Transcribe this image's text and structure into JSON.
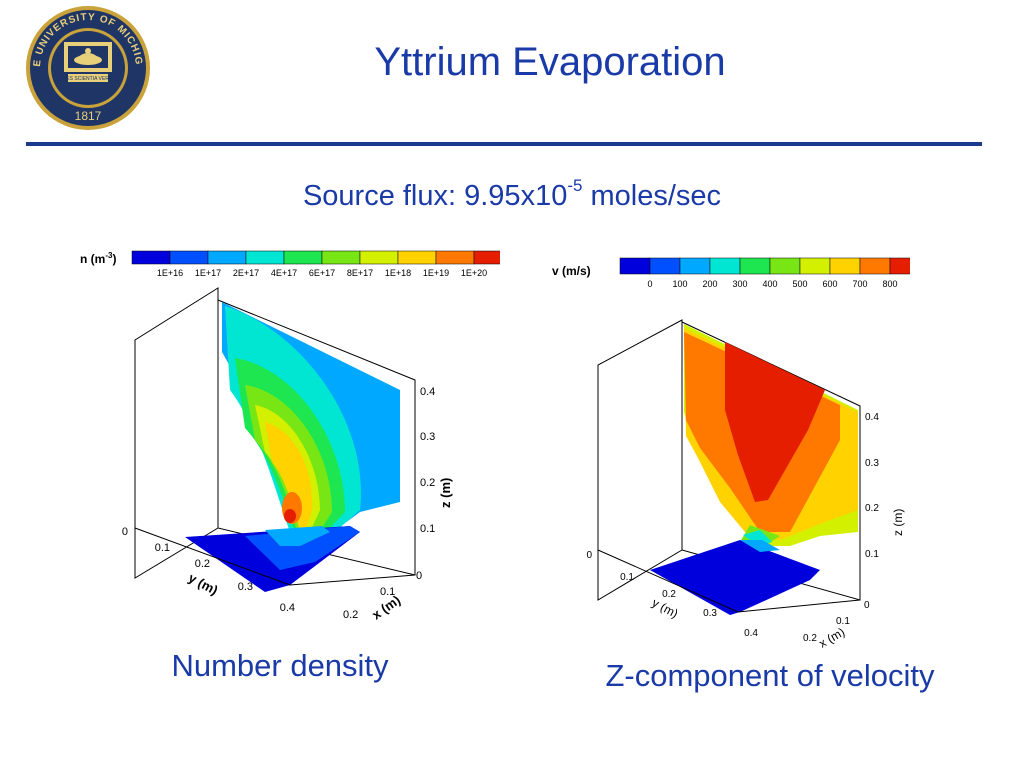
{
  "title": "Yttrium Evaporation",
  "seal_text": {
    "top": "THE UNIVERSITY OF MICHIGAN",
    "motto": "ARTES SCIENTIA VERITAS",
    "year": "1817"
  },
  "subtitle": {
    "prefix": "Source flux: 9.95x10",
    "exponent": "-5",
    "suffix": " moles/sec"
  },
  "left_plot": {
    "caption": "Number density",
    "legend_title": "n (m",
    "legend_title_exp": "-3",
    "legend_title_end": ")",
    "legend_labels": [
      "1E+16",
      "1E+17",
      "2E+17",
      "4E+17",
      "6E+17",
      "8E+17",
      "1E+18",
      "1E+19",
      "1E+20"
    ],
    "legend_colors": [
      "#0000dd",
      "#0050ff",
      "#00a8ff",
      "#00e6d2",
      "#1ee650",
      "#78e614",
      "#d2f000",
      "#ffd200",
      "#ff7800",
      "#e61e00"
    ],
    "y_ticks": [
      "0.1",
      "0.2",
      "0.3",
      "0.4"
    ],
    "x_ticks": [
      "0",
      "0.1",
      "0.2"
    ],
    "z_ticks": [
      "0",
      "0.1",
      "0.2",
      "0.3",
      "0.4"
    ],
    "corner_tick": "0",
    "y_axis_label": "y (m)",
    "x_axis_label": "x (m)",
    "z_axis_label": "z (m)"
  },
  "right_plot": {
    "caption": "Z-component of velocity",
    "legend_title": "v (m/s)",
    "legend_labels": [
      "0",
      "100",
      "200",
      "300",
      "400",
      "500",
      "600",
      "700",
      "800"
    ],
    "legend_colors": [
      "#0000dd",
      "#0050ff",
      "#00a8ff",
      "#00e6d2",
      "#1ee650",
      "#78e614",
      "#d2f000",
      "#ffd200",
      "#ff7800",
      "#e61e00"
    ],
    "y_ticks": [
      "0.1",
      "0.2",
      "0.3",
      "0.4"
    ],
    "x_ticks": [
      "0",
      "0.1",
      "0.2"
    ],
    "z_ticks": [
      "0",
      "0.1",
      "0.2",
      "0.3",
      "0.4"
    ],
    "corner_tick": "0",
    "y_axis_label": "y (m)",
    "x_axis_label": "x (m)",
    "z_axis_label": "z (m)"
  },
  "colors": {
    "title_blue": "#1a3aa8",
    "rule_navy": "#1a3a8f",
    "seal_navy": "#1f3566",
    "seal_gold": "#c9a23a"
  }
}
